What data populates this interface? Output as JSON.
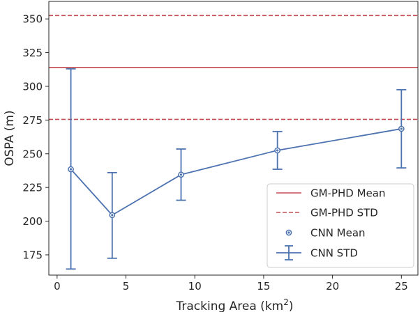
{
  "chart_data": {
    "type": "line",
    "xlabel": "Tracking Area (km",
    "xlabel_sup": "2",
    "xlabel_end": ")",
    "ylabel": "OSPA (m)",
    "xlim": [
      -0.6,
      26.2
    ],
    "ylim": [
      160,
      363
    ],
    "xticks": [
      0,
      5,
      10,
      15,
      20,
      25
    ],
    "yticks": [
      175,
      200,
      225,
      250,
      275,
      300,
      325,
      350
    ],
    "series": [
      {
        "name": "CNN Mean",
        "kind": "points",
        "color": "#4c72b0",
        "x": [
          1,
          4,
          9,
          16,
          25
        ],
        "y": [
          238.5,
          204.5,
          234.5,
          252.5,
          268.5
        ]
      },
      {
        "name": "CNN STD",
        "kind": "errorbar",
        "color": "#4c72b0",
        "x": [
          1,
          4,
          9,
          16,
          25
        ],
        "y": [
          238.5,
          204.5,
          234.5,
          252.5,
          268.5
        ],
        "lower": [
          164.5,
          172.5,
          215.5,
          238.5,
          239.5
        ],
        "upper": [
          313,
          236,
          253.5,
          266.5,
          297.5
        ]
      }
    ],
    "hlines": [
      {
        "name": "GM-PHD Mean",
        "y": 314,
        "color": "#c44e52",
        "style": "solid"
      },
      {
        "name": "GM-PHD STD",
        "y": 275.5,
        "color": "#c44e52",
        "style": "dashed"
      },
      {
        "name": "GM-PHD STD",
        "y": 352.5,
        "color": "#c44e52",
        "style": "dashed"
      }
    ],
    "legend": {
      "position": "lower-right",
      "entries": [
        "GM-PHD Mean",
        "GM-PHD STD",
        "CNN Mean",
        "CNN STD"
      ]
    },
    "grid": false
  },
  "colors": {
    "axis": "#262626",
    "background": "#ffffff"
  }
}
